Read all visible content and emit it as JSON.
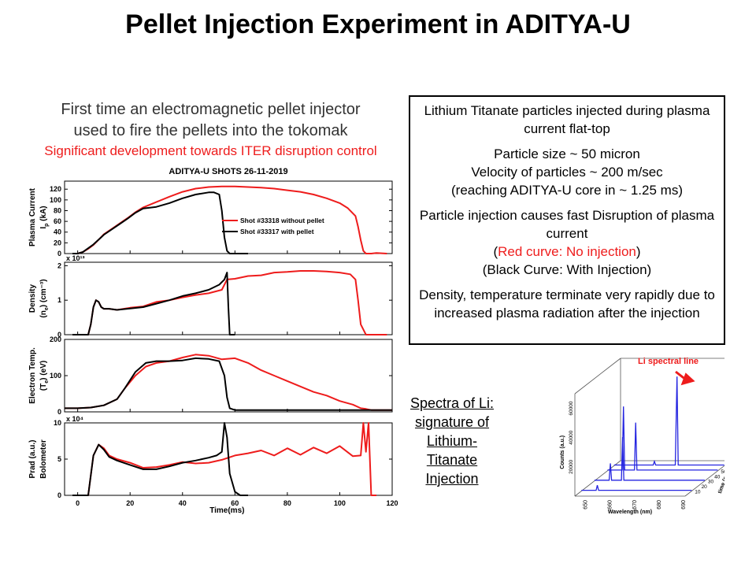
{
  "title": "Pellet Injection Experiment in ADITYA-U",
  "intro": {
    "line1": "First time an electromagnetic pellet injector",
    "line2": "used to fire the pellets into the tokomak",
    "line3": "Significant development towards ITER disruption control"
  },
  "info_box": {
    "p1": "Lithium Titanate particles injected during plasma current flat-top",
    "p2_line1": "Particle size ~ 50 micron",
    "p2_line2": "Velocity of particles ~ 200 m/sec",
    "p2_line3": "(reaching ADITYA-U core in ~ 1.25 ms)",
    "p3_line1": "Particle injection causes fast Disruption of plasma current",
    "p3_red_open": "(",
    "p3_red_text": "Red curve: No injection",
    "p3_red_close": ")",
    "p3_black": "(Black Curve: With Injection)",
    "p4": "Density, temperature terminate very rapidly due to increased plasma radiation after the injection"
  },
  "li_caption": {
    "line1": "Spectra of Li:",
    "line2": "signature of",
    "line3": "Lithium-Titanate",
    "line4": "Injection"
  },
  "colors": {
    "red": "#ee1c1c",
    "black": "#000000",
    "blue": "#2424e0"
  },
  "chart_data": [
    {
      "type": "line",
      "title": "ADITYA-U SHOTS  26-11-2019",
      "xlabel": "Time(ms)",
      "xlim": [
        -5,
        120
      ],
      "xticks": [
        0,
        20,
        40,
        60,
        80,
        100,
        120
      ],
      "xtick_labels": [
        "0",
        "20",
        "40",
        "60",
        "80",
        "100",
        "120"
      ],
      "legend": {
        "position": "right",
        "entries": [
          "Shot #33318 without pellet",
          "Shot #33317 with pellet"
        ]
      },
      "panels": [
        {
          "ylabel1": "Plasma Current",
          "ylabel2": "I",
          "ylabel2_sub": "p",
          "ylabel2_tail": " (kA)",
          "ylim": [
            0,
            135
          ],
          "yticks": [
            0,
            20,
            40,
            60,
            80,
            100,
            120
          ],
          "ytick_labels": [
            "0",
            "20",
            "40",
            "60",
            "80",
            "100",
            "120"
          ],
          "series": [
            {
              "name": "Shot #33318 without pellet",
              "color": "#ee1c1c",
              "x": [
                -2,
                0,
                2,
                4,
                6,
                8,
                10,
                13,
                16,
                19,
                22,
                25,
                30,
                35,
                40,
                45,
                50,
                55,
                60,
                65,
                70,
                75,
                80,
                85,
                90,
                95,
                100,
                103,
                106,
                107,
                108,
                109,
                110,
                112,
                114,
                118
              ],
              "y": [
                0,
                0,
                3,
                9,
                16,
                26,
                36,
                46,
                56,
                66,
                77,
                86,
                96,
                106,
                115,
                121,
                124,
                125,
                125,
                124,
                123,
                121,
                118,
                115,
                110,
                103,
                94,
                85,
                70,
                50,
                25,
                5,
                0,
                0,
                1,
                0
              ]
            },
            {
              "name": "Shot #33317 with pellet",
              "color": "#000000",
              "x": [
                -2,
                0,
                2,
                4,
                6,
                8,
                10,
                13,
                16,
                19,
                22,
                25,
                30,
                35,
                40,
                45,
                50,
                52,
                54,
                55,
                56,
                57,
                58,
                60,
                65
              ],
              "y": [
                0,
                0,
                3,
                10,
                17,
                26,
                35,
                45,
                55,
                65,
                76,
                84,
                87,
                94,
                103,
                110,
                114,
                114,
                110,
                80,
                30,
                5,
                0,
                0,
                0
              ]
            }
          ]
        },
        {
          "ylabel1": "Density",
          "ylabel2": "(n",
          "ylabel2_sub": "e",
          "ylabel2_tail": ") (cm⁻³)",
          "multiplier": "x 10¹³",
          "ylim": [
            0,
            2.1
          ],
          "yticks": [
            0,
            1,
            2
          ],
          "ytick_labels": [
            "0",
            "1",
            "2"
          ],
          "series": [
            {
              "name": "Shot #33318 without pellet",
              "color": "#ee1c1c",
              "x": [
                -2,
                4,
                5,
                6,
                7,
                8,
                9,
                10,
                12,
                15,
                20,
                25,
                30,
                35,
                40,
                45,
                50,
                55,
                57,
                60,
                65,
                70,
                75,
                80,
                85,
                90,
                95,
                100,
                104,
                106,
                107,
                108,
                110,
                118
              ],
              "y": [
                0,
                0,
                0.3,
                0.8,
                1.0,
                0.95,
                0.8,
                0.75,
                0.75,
                0.72,
                0.78,
                0.82,
                0.95,
                1.0,
                1.08,
                1.15,
                1.2,
                1.3,
                1.6,
                1.62,
                1.7,
                1.72,
                1.8,
                1.82,
                1.85,
                1.85,
                1.83,
                1.8,
                1.75,
                1.6,
                1.0,
                0.3,
                0,
                0
              ]
            },
            {
              "name": "Shot #33317 with pellet",
              "color": "#000000",
              "x": [
                -2,
                4,
                5,
                6,
                7,
                8,
                9,
                10,
                12,
                15,
                20,
                25,
                30,
                35,
                40,
                45,
                50,
                54,
                56,
                57,
                57.5,
                58,
                60
              ],
              "y": [
                0,
                0,
                0.3,
                0.8,
                1.0,
                0.95,
                0.8,
                0.75,
                0.75,
                0.72,
                0.76,
                0.8,
                0.9,
                1.0,
                1.12,
                1.2,
                1.3,
                1.45,
                1.6,
                1.8,
                0.8,
                0,
                0
              ]
            }
          ]
        },
        {
          "ylabel1": "Electron Temp.",
          "ylabel2": "(T",
          "ylabel2_sub": "e",
          "ylabel2_tail": ") (eV)",
          "ylim": [
            0,
            200
          ],
          "yticks": [
            0,
            100,
            200
          ],
          "ytick_labels": [
            "0",
            "100",
            "200"
          ],
          "series": [
            {
              "name": "Shot #33318 without pellet",
              "color": "#ee1c1c",
              "x": [
                -5,
                0,
                5,
                10,
                15,
                18,
                22,
                26,
                30,
                35,
                40,
                45,
                50,
                55,
                60,
                65,
                70,
                75,
                80,
                85,
                90,
                95,
                100,
                105,
                108,
                110,
                112,
                115,
                120
              ],
              "y": [
                10,
                10,
                12,
                18,
                35,
                65,
                100,
                125,
                135,
                140,
                150,
                158,
                155,
                145,
                148,
                135,
                115,
                100,
                85,
                70,
                55,
                45,
                30,
                20,
                10,
                8,
                5,
                5,
                5
              ]
            },
            {
              "name": "Shot #33317 with pellet",
              "color": "#000000",
              "x": [
                -5,
                0,
                5,
                10,
                15,
                18,
                22,
                26,
                30,
                35,
                40,
                45,
                50,
                54,
                56,
                57,
                58,
                60,
                70,
                80,
                90,
                100,
                110,
                120
              ],
              "y": [
                10,
                10,
                12,
                18,
                35,
                65,
                110,
                135,
                140,
                140,
                142,
                148,
                146,
                140,
                100,
                40,
                10,
                5,
                5,
                5,
                5,
                5,
                5,
                5
              ]
            }
          ]
        },
        {
          "ylabel1": "Prad (a.u.)",
          "ylabel2": "Bolometer",
          "ylabel2_sub": "",
          "ylabel2_tail": "",
          "multiplier": "x 10⁴",
          "ylim": [
            0,
            10
          ],
          "yticks": [
            0,
            5,
            10
          ],
          "ytick_labels": [
            "0",
            "5",
            "10"
          ],
          "series": [
            {
              "name": "Shot #33318 without pellet",
              "color": "#ee1c1c",
              "x": [
                -2,
                4,
                6,
                8,
                10,
                12,
                15,
                20,
                25,
                30,
                35,
                40,
                45,
                50,
                55,
                60,
                65,
                70,
                75,
                80,
                85,
                90,
                95,
                100,
                105,
                108,
                109,
                110,
                111,
                112,
                114
              ],
              "y": [
                0,
                0,
                5.5,
                7,
                6.5,
                5.5,
                5.0,
                4.5,
                3.8,
                3.9,
                4.2,
                4.6,
                4.4,
                4.5,
                4.9,
                5.5,
                5.8,
                6.2,
                5.5,
                6.5,
                5.6,
                6.6,
                5.8,
                6.8,
                5.4,
                5.5,
                10,
                6,
                10,
                0,
                0
              ]
            },
            {
              "name": "Shot #33317 with pellet",
              "color": "#000000",
              "x": [
                -2,
                4,
                6,
                8,
                10,
                12,
                15,
                20,
                25,
                30,
                35,
                40,
                45,
                50,
                53,
                55,
                56,
                57,
                58,
                60,
                62,
                65
              ],
              "y": [
                0,
                0,
                5.5,
                7.0,
                6.3,
                5.3,
                4.8,
                4.2,
                3.6,
                3.6,
                4.0,
                4.5,
                4.8,
                5.2,
                5.5,
                6.0,
                10,
                8,
                3,
                0.5,
                0,
                0
              ]
            }
          ]
        }
      ]
    },
    {
      "type": "line",
      "title": "",
      "annotation": "Li spectral line",
      "xlabel": "Wavelength (nm)",
      "ylabel": "Counts (a.u.)",
      "zlabel": "time (ms)",
      "xlim": [
        645,
        690
      ],
      "xticks": [
        650,
        660,
        670,
        680,
        690
      ],
      "xtick_labels": [
        "650",
        "660",
        "670",
        "680",
        "690"
      ],
      "ytick_labels": [
        "20000",
        "40000",
        "60000"
      ],
      "ztick_labels": [
        "10",
        "20",
        "30",
        "40",
        "50",
        "60",
        "70"
      ],
      "series": [
        {
          "name": "",
          "time_ms": 10,
          "color": "#2424e0",
          "x": [
            645,
            651,
            651.5,
            652,
            657,
            660,
            665,
            670,
            680,
            690
          ],
          "y": [
            500,
            500,
            4000,
            500,
            500,
            500,
            500,
            500,
            500,
            500
          ]
        },
        {
          "name": "",
          "time_ms": 30,
          "color": "#2424e0",
          "x": [
            645,
            651,
            651.5,
            652,
            656,
            656.5,
            657,
            665,
            670,
            690
          ],
          "y": [
            500,
            500,
            12000,
            500,
            500,
            30000,
            500,
            500,
            500,
            500
          ]
        },
        {
          "name": "",
          "time_ms": 50,
          "color": "#2424e0",
          "x": [
            645,
            651,
            651.5,
            652,
            656,
            656.5,
            657,
            665,
            670,
            690
          ],
          "y": [
            500,
            500,
            44000,
            500,
            500,
            33000,
            500,
            500,
            500,
            500
          ]
        },
        {
          "name": "",
          "time_ms": 60,
          "color": "#2424e0",
          "x": [
            645,
            661,
            661.5,
            662,
            670,
            670.7,
            671.2,
            672,
            690
          ],
          "y": [
            500,
            500,
            3000,
            500,
            500,
            61000,
            500,
            500,
            500
          ]
        }
      ]
    }
  ]
}
